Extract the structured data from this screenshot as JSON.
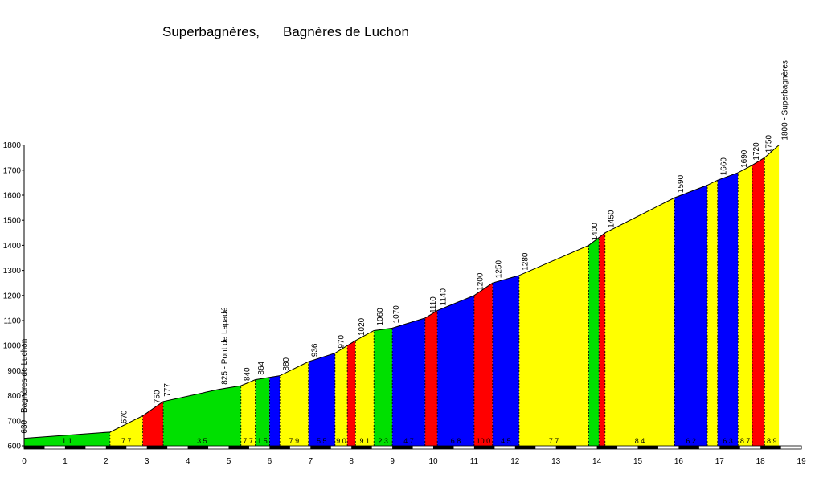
{
  "chart_data": {
    "type": "area",
    "title_parts": [
      "Superbagnères,",
      "Bagnères de Luchon"
    ],
    "xlim": [
      0,
      19
    ],
    "ylim": [
      600,
      1800
    ],
    "x_ticks": [
      0,
      1,
      2,
      3,
      4,
      5,
      6,
      7,
      8,
      9,
      10,
      11,
      12,
      13,
      14,
      15,
      16,
      17,
      18,
      19
    ],
    "y_ticks": [
      600,
      700,
      800,
      900,
      1000,
      1100,
      1200,
      1300,
      1400,
      1500,
      1600,
      1700,
      1800
    ],
    "grid": false,
    "colors": {
      "green": "#00e000",
      "yellow": "#ffff00",
      "red": "#ff0000",
      "blue": "#0000ff"
    },
    "profile_points": [
      {
        "km": 0,
        "alt": 630
      },
      {
        "km": 2.1,
        "alt": 655
      },
      {
        "km": 2.9,
        "alt": 720
      },
      {
        "km": 3.4,
        "alt": 777
      },
      {
        "km": 4.75,
        "alt": 825
      },
      {
        "km": 5.3,
        "alt": 840
      },
      {
        "km": 5.65,
        "alt": 864
      },
      {
        "km": 6.25,
        "alt": 880
      },
      {
        "km": 6.95,
        "alt": 936
      },
      {
        "km": 7.6,
        "alt": 970
      },
      {
        "km": 8.1,
        "alt": 1020
      },
      {
        "km": 8.55,
        "alt": 1060
      },
      {
        "km": 9.0,
        "alt": 1070
      },
      {
        "km": 9.8,
        "alt": 1110
      },
      {
        "km": 10.1,
        "alt": 1140
      },
      {
        "km": 11.0,
        "alt": 1200
      },
      {
        "km": 11.45,
        "alt": 1250
      },
      {
        "km": 12.1,
        "alt": 1280
      },
      {
        "km": 13.8,
        "alt": 1400
      },
      {
        "km": 14.2,
        "alt": 1450
      },
      {
        "km": 15.9,
        "alt": 1590
      },
      {
        "km": 16.7,
        "alt": 1640
      },
      {
        "km": 16.95,
        "alt": 1660
      },
      {
        "km": 17.45,
        "alt": 1690
      },
      {
        "km": 17.8,
        "alt": 1720
      },
      {
        "km": 18.1,
        "alt": 1750
      },
      {
        "km": 18.45,
        "alt": 1800
      }
    ],
    "segments": [
      {
        "from": 0,
        "to": 2.1,
        "color": "green",
        "gradient": "1.1"
      },
      {
        "from": 2.1,
        "to": 2.9,
        "color": "yellow",
        "gradient": "7.7"
      },
      {
        "from": 2.9,
        "to": 3.4,
        "color": "red",
        "gradient": ""
      },
      {
        "from": 3.4,
        "to": 5.3,
        "color": "green",
        "gradient": "3.5"
      },
      {
        "from": 5.3,
        "to": 5.65,
        "color": "yellow",
        "gradient": "7.7"
      },
      {
        "from": 5.65,
        "to": 6.0,
        "color": "green",
        "gradient": "1.5"
      },
      {
        "from": 6.0,
        "to": 6.25,
        "color": "blue",
        "gradient": ""
      },
      {
        "from": 6.25,
        "to": 6.95,
        "color": "yellow",
        "gradient": "7.9"
      },
      {
        "from": 6.95,
        "to": 7.6,
        "color": "blue",
        "gradient": "5.5"
      },
      {
        "from": 7.6,
        "to": 7.9,
        "color": "yellow",
        "gradient": "9.0"
      },
      {
        "from": 7.9,
        "to": 8.1,
        "color": "red",
        "gradient": ""
      },
      {
        "from": 8.1,
        "to": 8.55,
        "color": "yellow",
        "gradient": "9.1"
      },
      {
        "from": 8.55,
        "to": 9.0,
        "color": "green",
        "gradient": "2.3"
      },
      {
        "from": 9.0,
        "to": 9.8,
        "color": "blue",
        "gradient": "4.7"
      },
      {
        "from": 9.8,
        "to": 10.1,
        "color": "red",
        "gradient": ""
      },
      {
        "from": 10.1,
        "to": 11.0,
        "color": "blue",
        "gradient": "6.8"
      },
      {
        "from": 11.0,
        "to": 11.45,
        "color": "red",
        "gradient": "10.0"
      },
      {
        "from": 11.45,
        "to": 12.1,
        "color": "blue",
        "gradient": "4.5"
      },
      {
        "from": 12.1,
        "to": 13.8,
        "color": "yellow",
        "gradient": "7.7"
      },
      {
        "from": 13.8,
        "to": 14.05,
        "color": "green",
        "gradient": ""
      },
      {
        "from": 14.05,
        "to": 14.2,
        "color": "red",
        "gradient": ""
      },
      {
        "from": 14.2,
        "to": 15.9,
        "color": "yellow",
        "gradient": "8.4"
      },
      {
        "from": 15.9,
        "to": 16.7,
        "color": "blue",
        "gradient": "6.2"
      },
      {
        "from": 16.7,
        "to": 16.95,
        "color": "yellow",
        "gradient": ""
      },
      {
        "from": 16.95,
        "to": 17.45,
        "color": "blue",
        "gradient": "6.3"
      },
      {
        "from": 17.45,
        "to": 17.8,
        "color": "yellow",
        "gradient": "8.7"
      },
      {
        "from": 17.8,
        "to": 18.1,
        "color": "red",
        "gradient": ""
      },
      {
        "from": 18.1,
        "to": 18.45,
        "color": "yellow",
        "gradient": "8.9"
      }
    ],
    "point_labels": [
      {
        "km": 0,
        "alt": 630,
        "text": "630 - Bagnères de Luchon"
      },
      {
        "km": 2.45,
        "alt": 670,
        "text": "670"
      },
      {
        "km": 3.25,
        "alt": 750,
        "text": "750"
      },
      {
        "km": 3.5,
        "alt": 777,
        "text": "777"
      },
      {
        "km": 4.9,
        "alt": 825,
        "text": "825 - Pont de Lapadé"
      },
      {
        "km": 5.45,
        "alt": 840,
        "text": "840"
      },
      {
        "km": 5.8,
        "alt": 864,
        "text": "864"
      },
      {
        "km": 6.4,
        "alt": 880,
        "text": "880"
      },
      {
        "km": 7.1,
        "alt": 936,
        "text": "936"
      },
      {
        "km": 7.75,
        "alt": 970,
        "text": "970"
      },
      {
        "km": 8.25,
        "alt": 1020,
        "text": "1020"
      },
      {
        "km": 8.7,
        "alt": 1060,
        "text": "1060"
      },
      {
        "km": 9.1,
        "alt": 1070,
        "text": "1070"
      },
      {
        "km": 10.0,
        "alt": 1110,
        "text": "1110"
      },
      {
        "km": 10.25,
        "alt": 1140,
        "text": "1140"
      },
      {
        "km": 11.15,
        "alt": 1200,
        "text": "1200"
      },
      {
        "km": 11.6,
        "alt": 1250,
        "text": "1250"
      },
      {
        "km": 12.25,
        "alt": 1280,
        "text": "1280"
      },
      {
        "km": 13.95,
        "alt": 1400,
        "text": "1400"
      },
      {
        "km": 14.35,
        "alt": 1450,
        "text": "1450"
      },
      {
        "km": 16.05,
        "alt": 1590,
        "text": "1590"
      },
      {
        "km": 17.1,
        "alt": 1660,
        "text": "1660"
      },
      {
        "km": 17.6,
        "alt": 1690,
        "text": "1690"
      },
      {
        "km": 17.9,
        "alt": 1720,
        "text": "1720"
      },
      {
        "km": 18.2,
        "alt": 1750,
        "text": "1750"
      },
      {
        "km": 18.6,
        "alt": 1800,
        "text": "1800 - Superbagnères"
      }
    ]
  }
}
